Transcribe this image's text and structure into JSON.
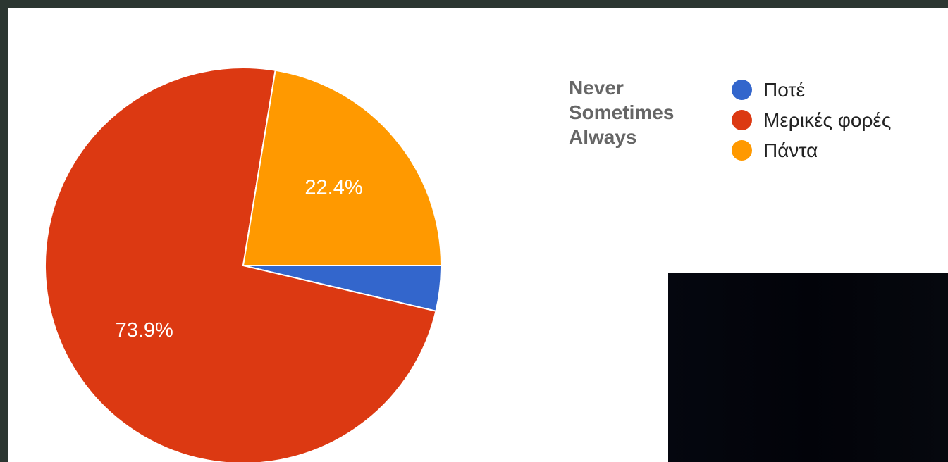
{
  "chart_data": {
    "type": "pie",
    "categories": [
      "Ποτέ",
      "Μερικές φορές",
      "Πάντα"
    ],
    "values": [
      3.7,
      73.9,
      22.4
    ],
    "value_labels": [
      "",
      "73.9%",
      "22.4%"
    ],
    "colors": [
      "#3366cc",
      "#dc3912",
      "#ff9900"
    ],
    "legend_position": "right",
    "start_angle_deg": 90,
    "direction": "clockwise"
  },
  "legend": {
    "items": [
      {
        "label": "Ποτέ",
        "color": "#3366cc"
      },
      {
        "label": "Μερικές φορές",
        "color": "#dc3912"
      },
      {
        "label": "Πάντα",
        "color": "#ff9900"
      }
    ]
  },
  "translations": {
    "items": [
      "Never",
      "Sometimes",
      "Always"
    ]
  }
}
